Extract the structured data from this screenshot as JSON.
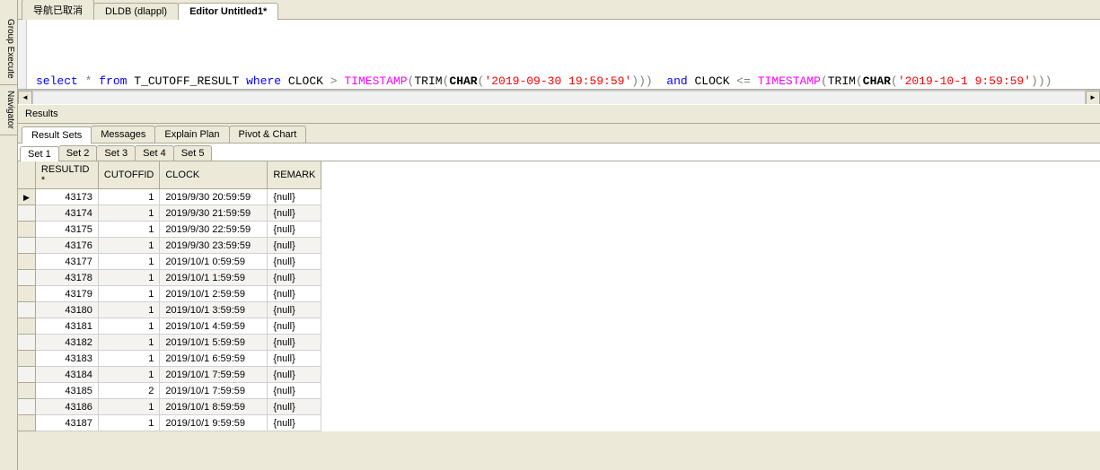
{
  "side_tabs": [
    {
      "label": "Group Execute"
    },
    {
      "label": "Navigator"
    }
  ],
  "top_tabs": [
    {
      "label": "导航已取消",
      "active": false
    },
    {
      "label": "DLDB (dlappl)",
      "active": false
    },
    {
      "label": "Editor Untitled1*",
      "active": true
    }
  ],
  "sql": [
    [
      {
        "t": "select",
        "c": "kw-blue"
      },
      {
        "t": " ",
        "c": "kw-black"
      },
      {
        "t": "*",
        "c": "kw-op"
      },
      {
        "t": " ",
        "c": "kw-black"
      },
      {
        "t": "from",
        "c": "kw-blue"
      },
      {
        "t": " T_CUTOFF_RESULT ",
        "c": "kw-black"
      },
      {
        "t": "where",
        "c": "kw-blue"
      },
      {
        "t": " CLOCK ",
        "c": "kw-black"
      },
      {
        "t": ">",
        "c": "kw-op"
      },
      {
        "t": " ",
        "c": "kw-black"
      },
      {
        "t": "TIMESTAMP",
        "c": "kw-func"
      },
      {
        "t": "(",
        "c": "kw-op"
      },
      {
        "t": "TRIM",
        "c": "kw-black"
      },
      {
        "t": "(",
        "c": "kw-op"
      },
      {
        "t": "CHAR",
        "c": "kw-bold"
      },
      {
        "t": "(",
        "c": "kw-op"
      },
      {
        "t": "'2019-09-30 19:59:59'",
        "c": "kw-str"
      },
      {
        "t": ")))",
        "c": "kw-op"
      },
      {
        "t": "  ",
        "c": "kw-black"
      },
      {
        "t": "and",
        "c": "kw-blue"
      },
      {
        "t": " CLOCK ",
        "c": "kw-black"
      },
      {
        "t": "<=",
        "c": "kw-op"
      },
      {
        "t": " ",
        "c": "kw-black"
      },
      {
        "t": "TIMESTAMP",
        "c": "kw-func"
      },
      {
        "t": "(",
        "c": "kw-op"
      },
      {
        "t": "TRIM",
        "c": "kw-black"
      },
      {
        "t": "(",
        "c": "kw-op"
      },
      {
        "t": "CHAR",
        "c": "kw-bold"
      },
      {
        "t": "(",
        "c": "kw-op"
      },
      {
        "t": "'2019-10-1 9:59:59'",
        "c": "kw-str"
      },
      {
        "t": ")))",
        "c": "kw-op"
      }
    ],
    [
      {
        "t": "select",
        "c": "kw-blue"
      },
      {
        "t": " ",
        "c": "kw-black"
      },
      {
        "t": "*",
        "c": "kw-op"
      },
      {
        "t": " ",
        "c": "kw-black"
      },
      {
        "t": "from",
        "c": "kw-blue"
      },
      {
        "t": " T_CUTOFF_RESULT ",
        "c": "kw-black"
      },
      {
        "t": "where",
        "c": "kw-blue"
      },
      {
        "t": " CLOCK ",
        "c": "kw-black"
      },
      {
        "t": ">",
        "c": "kw-op"
      },
      {
        "t": " ",
        "c": "kw-black"
      },
      {
        "t": "TIMESTAMP",
        "c": "kw-func"
      },
      {
        "t": "(",
        "c": "kw-op"
      },
      {
        "t": "'2019-09-30 19:59:59'",
        "c": "kw-str"
      },
      {
        "t": ")",
        "c": "kw-op"
      },
      {
        "t": "  ",
        "c": "kw-black"
      },
      {
        "t": "and",
        "c": "kw-blue"
      },
      {
        "t": " CLOCK ",
        "c": "kw-black"
      },
      {
        "t": "<=",
        "c": "kw-op"
      },
      {
        "t": " ",
        "c": "kw-black"
      },
      {
        "t": "TIMESTAMP",
        "c": "kw-func"
      },
      {
        "t": "(",
        "c": "kw-op"
      },
      {
        "t": "'2019-10-1 9:59:59'",
        "c": "kw-str"
      },
      {
        "t": ")",
        "c": "kw-op"
      }
    ]
  ],
  "results_label": "Results",
  "sub_tabs": [
    {
      "label": "Result Sets",
      "active": true
    },
    {
      "label": "Messages",
      "active": false
    },
    {
      "label": "Explain Plan",
      "active": false
    },
    {
      "label": "Pivot & Chart",
      "active": false
    }
  ],
  "set_tabs": [
    {
      "label": "Set 1",
      "active": true
    },
    {
      "label": "Set 2",
      "active": false
    },
    {
      "label": "Set 3",
      "active": false
    },
    {
      "label": "Set 4",
      "active": false
    },
    {
      "label": "Set 5",
      "active": false
    }
  ],
  "columns": [
    "RESULTID *",
    "CUTOFFID",
    "CLOCK",
    "REMARK"
  ],
  "rows": [
    {
      "resultid": "43173",
      "cutoffid": "1",
      "clock": "2019/9/30 20:59:59",
      "remark": "{null}",
      "current": true
    },
    {
      "resultid": "43174",
      "cutoffid": "1",
      "clock": "2019/9/30 21:59:59",
      "remark": "{null}"
    },
    {
      "resultid": "43175",
      "cutoffid": "1",
      "clock": "2019/9/30 22:59:59",
      "remark": "{null}"
    },
    {
      "resultid": "43176",
      "cutoffid": "1",
      "clock": "2019/9/30 23:59:59",
      "remark": "{null}"
    },
    {
      "resultid": "43177",
      "cutoffid": "1",
      "clock": "2019/10/1 0:59:59",
      "remark": "{null}"
    },
    {
      "resultid": "43178",
      "cutoffid": "1",
      "clock": "2019/10/1 1:59:59",
      "remark": "{null}"
    },
    {
      "resultid": "43179",
      "cutoffid": "1",
      "clock": "2019/10/1 2:59:59",
      "remark": "{null}"
    },
    {
      "resultid": "43180",
      "cutoffid": "1",
      "clock": "2019/10/1 3:59:59",
      "remark": "{null}"
    },
    {
      "resultid": "43181",
      "cutoffid": "1",
      "clock": "2019/10/1 4:59:59",
      "remark": "{null}"
    },
    {
      "resultid": "43182",
      "cutoffid": "1",
      "clock": "2019/10/1 5:59:59",
      "remark": "{null}"
    },
    {
      "resultid": "43183",
      "cutoffid": "1",
      "clock": "2019/10/1 6:59:59",
      "remark": "{null}"
    },
    {
      "resultid": "43184",
      "cutoffid": "1",
      "clock": "2019/10/1 7:59:59",
      "remark": "{null}"
    },
    {
      "resultid": "43185",
      "cutoffid": "2",
      "clock": "2019/10/1 7:59:59",
      "remark": "{null}"
    },
    {
      "resultid": "43186",
      "cutoffid": "1",
      "clock": "2019/10/1 8:59:59",
      "remark": "{null}"
    },
    {
      "resultid": "43187",
      "cutoffid": "1",
      "clock": "2019/10/1 9:59:59",
      "remark": "{null}"
    }
  ]
}
